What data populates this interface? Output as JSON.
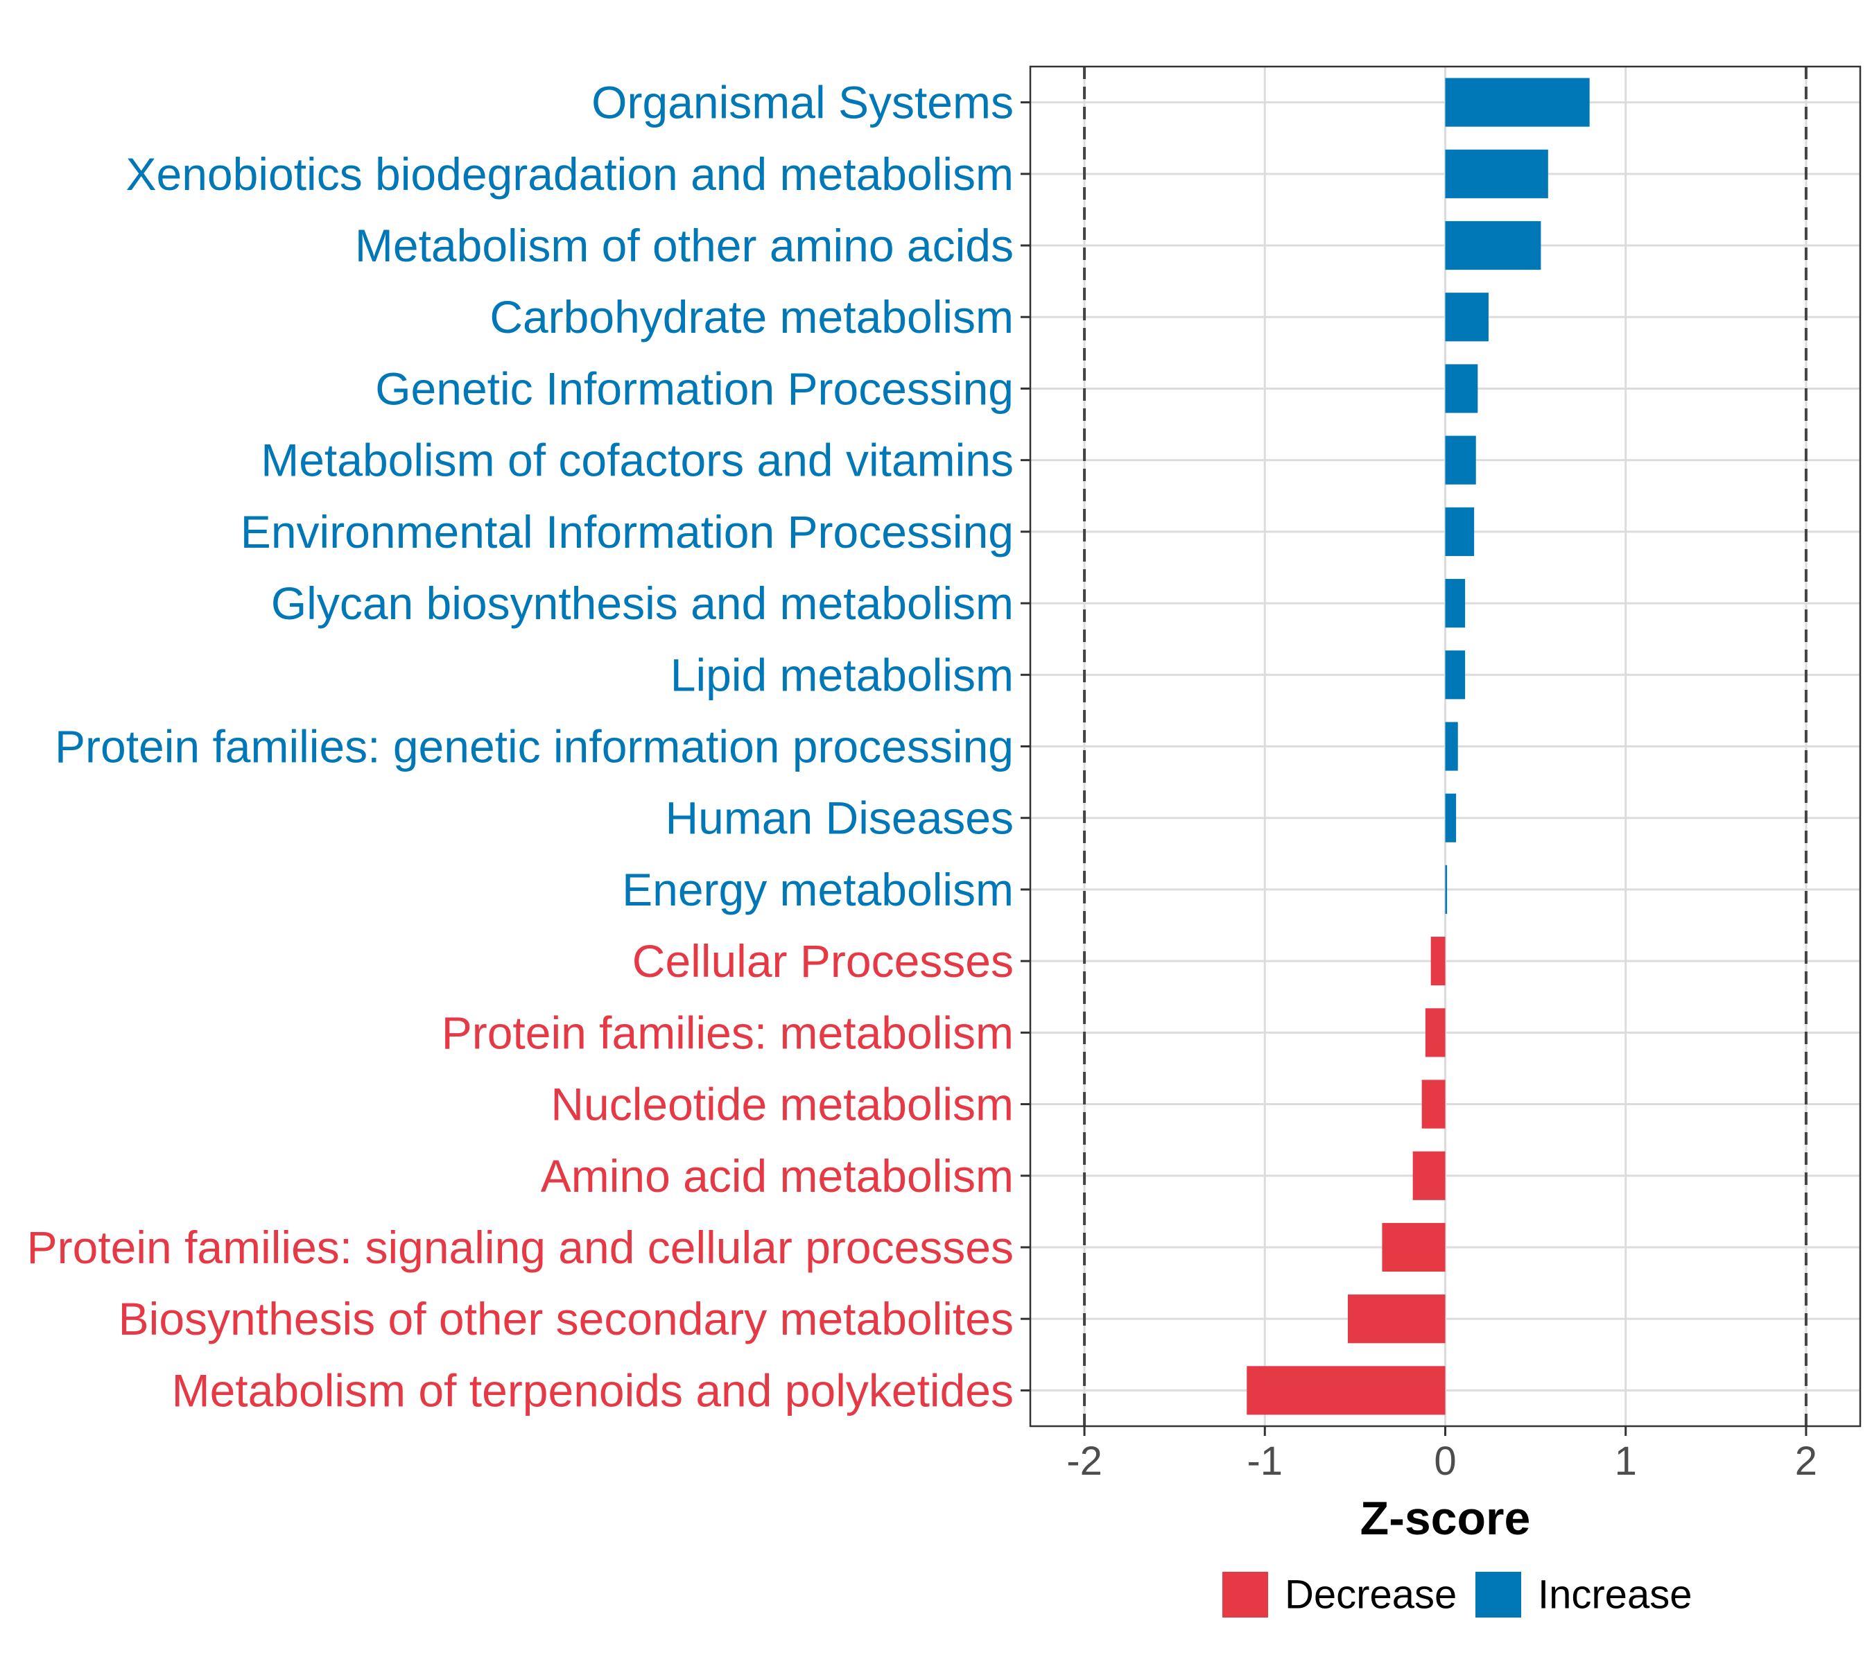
{
  "chart_data": {
    "type": "bar",
    "orientation": "horizontal",
    "xlabel": "Z-score",
    "xlim": [
      -2.3,
      2.3
    ],
    "xticks": [
      -2,
      -1,
      0,
      1,
      2
    ],
    "xtick_labels": [
      "-2",
      "-1",
      "0",
      "1",
      "2"
    ],
    "reference_lines": [
      -2,
      2
    ],
    "grid": true,
    "categories": [
      "Organismal Systems",
      "Xenobiotics biodegradation and metabolism",
      "Metabolism of other amino acids",
      "Carbohydrate metabolism",
      "Genetic Information Processing",
      "Metabolism of cofactors and vitamins",
      "Environmental Information Processing",
      "Glycan biosynthesis and metabolism",
      "Lipid metabolism",
      "Protein families: genetic information processing",
      "Human Diseases",
      "Energy metabolism",
      "Cellular Processes",
      "Protein families: metabolism",
      "Nucleotide metabolism",
      "Amino acid metabolism",
      "Protein families: signaling and cellular processes",
      "Biosynthesis of other secondary metabolites",
      "Metabolism of terpenoids and polyketides"
    ],
    "values": [
      0.8,
      0.57,
      0.53,
      0.24,
      0.18,
      0.17,
      0.16,
      0.11,
      0.11,
      0.07,
      0.06,
      0.01,
      -0.08,
      -0.11,
      -0.13,
      -0.18,
      -0.35,
      -0.54,
      -1.1
    ],
    "groups": [
      "Increase",
      "Increase",
      "Increase",
      "Increase",
      "Increase",
      "Increase",
      "Increase",
      "Increase",
      "Increase",
      "Increase",
      "Increase",
      "Increase",
      "Decrease",
      "Decrease",
      "Decrease",
      "Decrease",
      "Decrease",
      "Decrease",
      "Decrease"
    ],
    "legend": {
      "position": "bottom",
      "entries": [
        {
          "label": "Decrease",
          "color": "#E63946"
        },
        {
          "label": "Increase",
          "color": "#0077B6"
        }
      ]
    },
    "colors": {
      "Increase": "#0077B6",
      "Decrease": "#E63946"
    }
  }
}
